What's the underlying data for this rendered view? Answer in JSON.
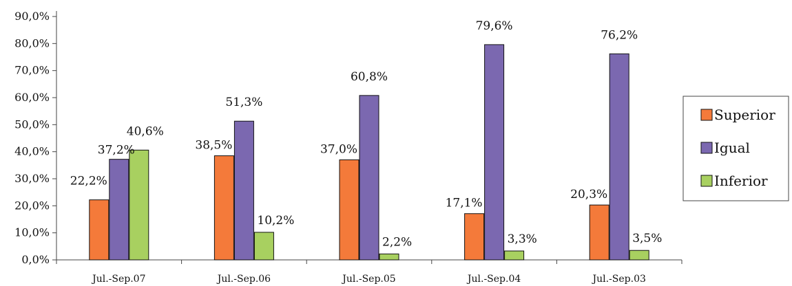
{
  "chart_data": {
    "type": "bar",
    "title": "",
    "xlabel": "",
    "ylabel": "",
    "categories": [
      "Jul.-Sep.07",
      "Jul.-Sep.06",
      "Jul.-Sep.05",
      "Jul.-Sep.04",
      "Jul.-Sep.03"
    ],
    "series": [
      {
        "name": "Superior",
        "color": "#f47a3a",
        "values": [
          22.2,
          38.5,
          37.0,
          17.1,
          20.3
        ],
        "labels": [
          "22,2%",
          "38,5%",
          "37,0%",
          "17,1%",
          "20,3%"
        ]
      },
      {
        "name": "Igual",
        "color": "#7b68b0",
        "values": [
          37.2,
          51.3,
          60.8,
          79.6,
          76.2
        ],
        "labels": [
          "37,2%",
          "51,3%",
          "60,8%",
          "79,6%",
          "76,2%"
        ]
      },
      {
        "name": "Inferior",
        "color": "#a8d060",
        "values": [
          40.6,
          10.2,
          2.2,
          3.3,
          3.5
        ],
        "labels": [
          "40,6%",
          "10,2%",
          "2,2%",
          "3,3%",
          "3,5%"
        ]
      }
    ],
    "ylim": [
      0,
      90
    ],
    "yticks": [
      0,
      10,
      20,
      30,
      40,
      50,
      60,
      70,
      80,
      90
    ],
    "ytick_labels": [
      "0,0%",
      "10,0%",
      "20,0%",
      "30,0%",
      "40,0%",
      "50,0%",
      "60,0%",
      "70,0%",
      "80,0%",
      "90,0%"
    ],
    "grid": false,
    "legend_position": "right"
  }
}
